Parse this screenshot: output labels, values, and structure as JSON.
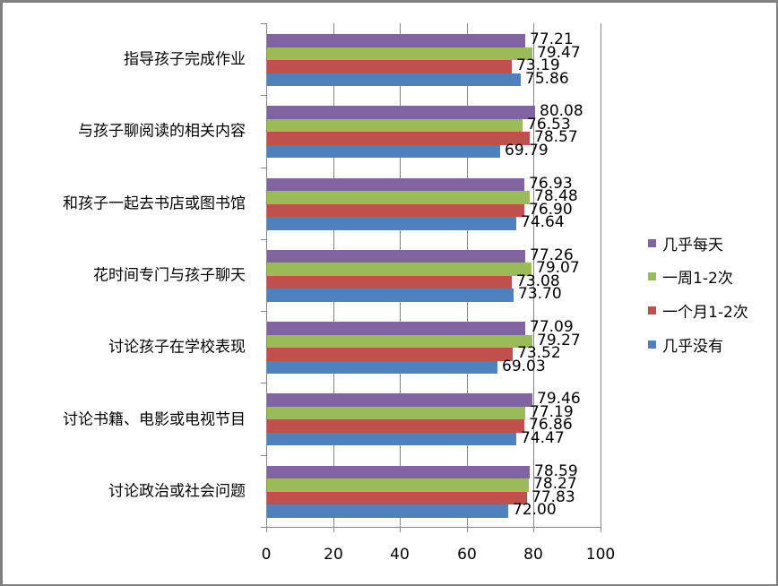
{
  "colors": {
    "几乎每天": "#8064A2",
    "一周1-2次": "#9BBB59",
    "一个月1-2次": "#C0504D",
    "几乎没有": "#4F81BD"
  },
  "legend": [
    {
      "label": "几乎每天",
      "color": "#8064A2"
    },
    {
      "label": "一周1-2次",
      "color": "#9BBB59"
    },
    {
      "label": "一个月1-2次",
      "color": "#C0504D"
    },
    {
      "label": "几乎没有",
      "color": "#4F81BD"
    }
  ],
  "x_ticks": [
    "0",
    "20",
    "40",
    "60",
    "80",
    "100"
  ],
  "categories": [
    {
      "label": "指导孩子完成作业",
      "values": [
        "77.21",
        "79.47",
        "73.19",
        "75.86"
      ]
    },
    {
      "label": "与孩子聊阅读的相关内容",
      "values": [
        "80.08",
        "76.53",
        "78.57",
        "69.79"
      ]
    },
    {
      "label": "和孩子一起去书店或图书馆",
      "values": [
        "76.93",
        "78.48",
        "76.90",
        "74.64"
      ]
    },
    {
      "label": "花时间专门与孩子聊天",
      "values": [
        "77.26",
        "79.07",
        "73.08",
        "73.70"
      ]
    },
    {
      "label": "讨论孩子在学校表现",
      "values": [
        "77.09",
        "79.27",
        "73.52",
        "69.03"
      ]
    },
    {
      "label": "讨论书籍、电影或电视节目",
      "values": [
        "79.46",
        "77.19",
        "76.86",
        "74.47"
      ]
    },
    {
      "label": "讨论政治或社会问题",
      "values": [
        "78.59",
        "78.27",
        "77.83",
        "72.00"
      ]
    }
  ],
  "chart_data": {
    "type": "bar",
    "orientation": "horizontal",
    "title": "",
    "xlabel": "",
    "ylabel": "",
    "xlim": [
      0,
      100
    ],
    "x_ticks": [
      0,
      20,
      40,
      60,
      80,
      100
    ],
    "grid": {
      "vertical": true,
      "horizontal": false
    },
    "legend_position": "right",
    "categories": [
      "指导孩子完成作业",
      "与孩子聊阅读的相关内容",
      "和孩子一起去书店或图书馆",
      "花时间专门与孩子聊天",
      "讨论孩子在学校表现",
      "讨论书籍、电影或电视节目",
      "讨论政治或社会问题"
    ],
    "series": [
      {
        "name": "几乎每天",
        "color": "#8064A2",
        "values": [
          77.21,
          80.08,
          76.93,
          77.26,
          77.09,
          79.46,
          78.59
        ]
      },
      {
        "name": "一周1-2次",
        "color": "#9BBB59",
        "values": [
          79.47,
          76.53,
          78.48,
          79.07,
          79.27,
          77.19,
          78.27
        ]
      },
      {
        "name": "一个月1-2次",
        "color": "#C0504D",
        "values": [
          73.19,
          78.57,
          76.9,
          73.08,
          73.52,
          76.86,
          77.83
        ]
      },
      {
        "name": "几乎没有",
        "color": "#4F81BD",
        "values": [
          75.86,
          69.79,
          74.64,
          73.7,
          69.03,
          74.47,
          72.0
        ]
      }
    ],
    "data_labels": true
  }
}
